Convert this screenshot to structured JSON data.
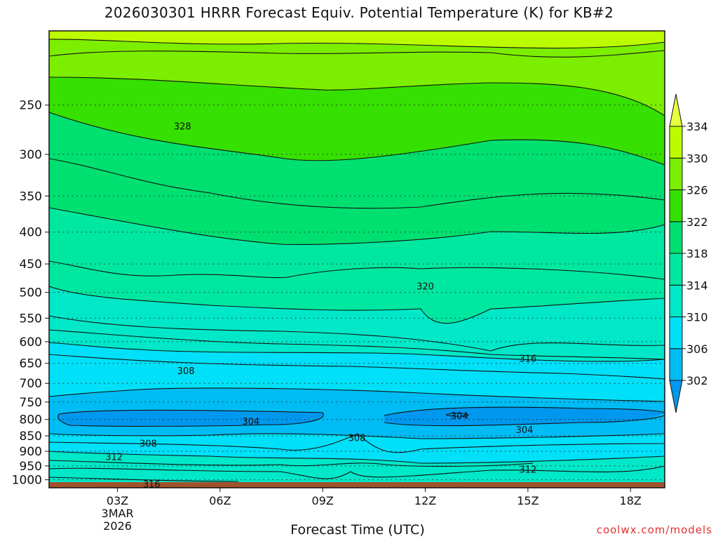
{
  "chart_data": {
    "type": "contour",
    "title": "2026030301 HRRR Forecast Equiv. Potential Temperature (K) for KB#2",
    "xlabel": "Forecast Time (UTC)",
    "ylabel": "",
    "x_ticks": [
      "03Z",
      "06Z",
      "09Z",
      "12Z",
      "15Z",
      "18Z"
    ],
    "x_tick_hours": [
      3,
      6,
      9,
      12,
      15,
      18
    ],
    "x_range_hours": [
      1,
      19
    ],
    "date_lines": [
      "3MAR",
      "2026"
    ],
    "y_ticks": [
      250,
      300,
      350,
      400,
      450,
      500,
      550,
      600,
      650,
      700,
      750,
      800,
      850,
      900,
      950,
      1000
    ],
    "y_range": [
      190,
      1030
    ],
    "y_scale": "log-pressure",
    "colorbar": {
      "levels": [
        302,
        306,
        310,
        314,
        318,
        322,
        326,
        330,
        334
      ],
      "colors": [
        "#0098ee",
        "#00bcf4",
        "#00e0f8",
        "#00e8c8",
        "#00e8a0",
        "#00e070",
        "#36e000",
        "#7cee00",
        "#bcfc00",
        "#e8ff40"
      ]
    },
    "contour_labels": [
      {
        "text": "328",
        "hour": 4.9,
        "pressure": 270
      },
      {
        "text": "320",
        "hour": 12.0,
        "pressure": 488
      },
      {
        "text": "316",
        "hour": 15.0,
        "pressure": 638
      },
      {
        "text": "308",
        "hour": 5.0,
        "pressure": 668
      },
      {
        "text": "304",
        "hour": 6.9,
        "pressure": 805
      },
      {
        "text": "304",
        "hour": 13.0,
        "pressure": 788
      },
      {
        "text": "304",
        "hour": 14.9,
        "pressure": 830
      },
      {
        "text": "308",
        "hour": 3.9,
        "pressure": 873
      },
      {
        "text": "308",
        "hour": 10.0,
        "pressure": 855
      },
      {
        "text": "312",
        "hour": 2.9,
        "pressure": 918
      },
      {
        "text": "312",
        "hour": 15.0,
        "pressure": 962
      },
      {
        "text": "316",
        "hour": 4.0,
        "pressure": 1015
      }
    ],
    "ground_color": "#a0522d"
  },
  "credit": "coolwx.com/models"
}
